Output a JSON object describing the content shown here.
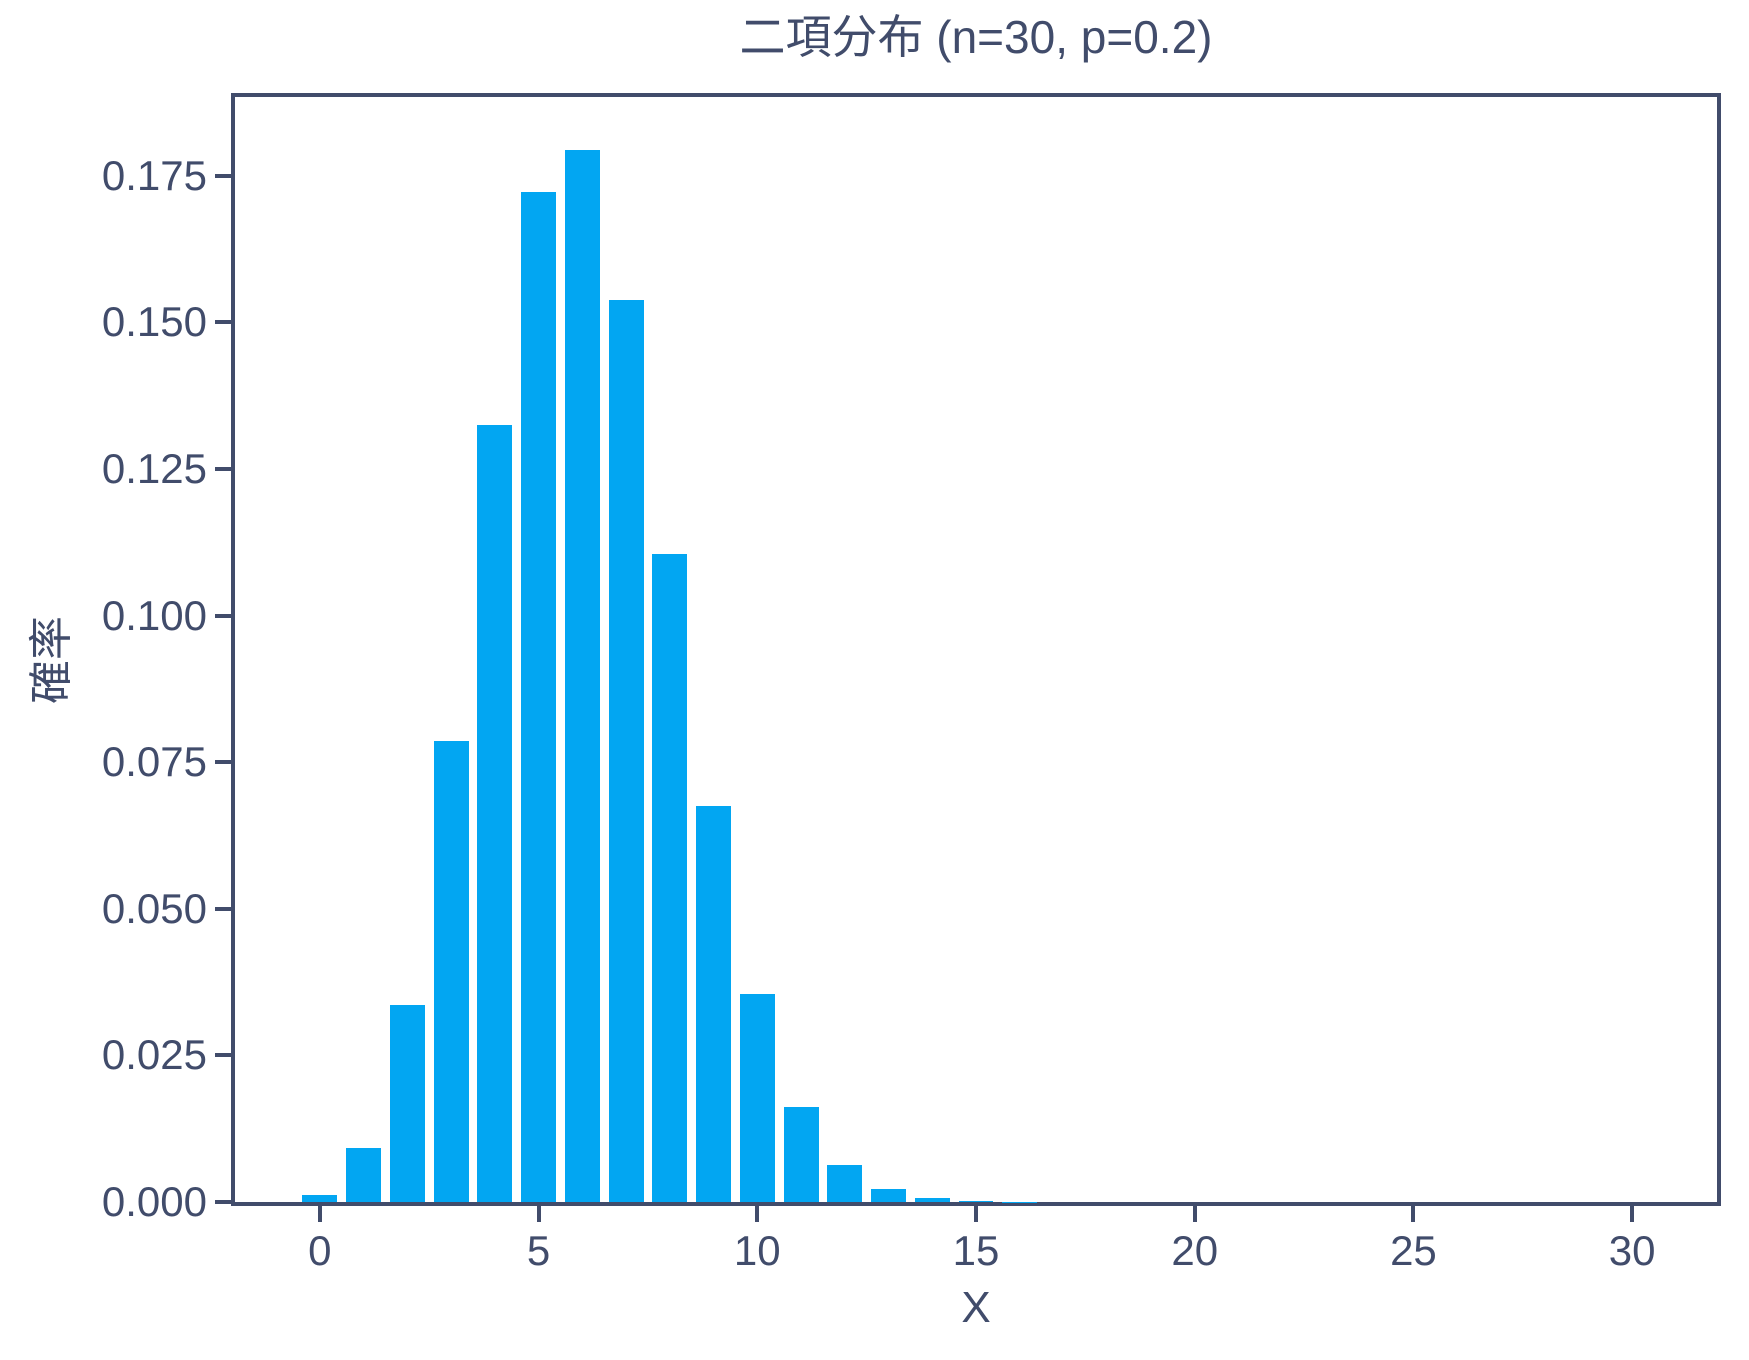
{
  "colors": {
    "bar": "#02a6f2",
    "axis_and_text": "#414c6b",
    "background": "#ffffff"
  },
  "chart_data": {
    "type": "bar",
    "title": "二項分布 (n=30, p=0.2)",
    "xlabel": "X",
    "ylabel": "確率",
    "x": [
      0,
      1,
      2,
      3,
      4,
      5,
      6,
      7,
      8,
      9,
      10,
      11,
      12,
      13,
      14,
      15,
      16,
      17,
      18,
      19,
      20,
      21,
      22,
      23,
      24,
      25,
      26,
      27,
      28,
      29,
      30
    ],
    "values": [
      0.001238,
      0.009285,
      0.033656,
      0.078532,
      0.132522,
      0.172279,
      0.179457,
      0.153821,
      0.110559,
      0.067564,
      0.035471,
      0.016123,
      0.006382,
      0.002209,
      0.000671,
      0.000179,
      4.19e-05,
      8.6e-06,
      1.6e-06,
      2e-07,
      0,
      0,
      0,
      0,
      0,
      0,
      0,
      0,
      0,
      0,
      0
    ],
    "bar_width": 0.8,
    "xticks": [
      {
        "value": 0,
        "label": "0"
      },
      {
        "value": 5,
        "label": "5"
      },
      {
        "value": 10,
        "label": "10"
      },
      {
        "value": 15,
        "label": "15"
      },
      {
        "value": 20,
        "label": "20"
      },
      {
        "value": 25,
        "label": "25"
      },
      {
        "value": 30,
        "label": "30"
      }
    ],
    "yticks": [
      {
        "value": 0.0,
        "label": "0.000"
      },
      {
        "value": 0.025,
        "label": "0.025"
      },
      {
        "value": 0.05,
        "label": "0.050"
      },
      {
        "value": 0.075,
        "label": "0.075"
      },
      {
        "value": 0.1,
        "label": "0.100"
      },
      {
        "value": 0.125,
        "label": "0.125"
      },
      {
        "value": 0.15,
        "label": "0.150"
      },
      {
        "value": 0.175,
        "label": "0.175"
      }
    ],
    "xlim": [
      -1.94,
      31.94
    ],
    "ylim": [
      0,
      0.18843
    ],
    "grid": false,
    "legend": null
  }
}
